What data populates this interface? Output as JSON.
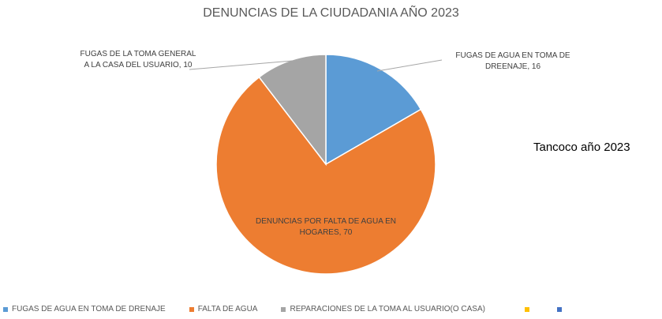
{
  "chart_data": {
    "type": "pie",
    "title": "DENUNCIAS DE LA CIUDADANIA AÑO 2023",
    "categories": [
      "FUGAS DE AGUA EN TOMA DE DRENAJE",
      "FALTA DE AGUA",
      "REPARACIONES DE LA TOMA AL USUARIO(O CASA)"
    ],
    "values": [
      16,
      70,
      10
    ],
    "colors": [
      "#5b9bd5",
      "#ed7d31",
      "#a5a5a5"
    ],
    "value_labels": [
      "FUGAS DE AGUA EN TOMA DE DREENAJE, 16",
      "DENUNCIAS POR FALTA DE AGUA EN HOGARES, 70",
      "FUGAS DE LA TOMA GENERAL A LA CASA DEL USUARIO, 10"
    ],
    "annotation": "Tancoco año 2023"
  }
}
